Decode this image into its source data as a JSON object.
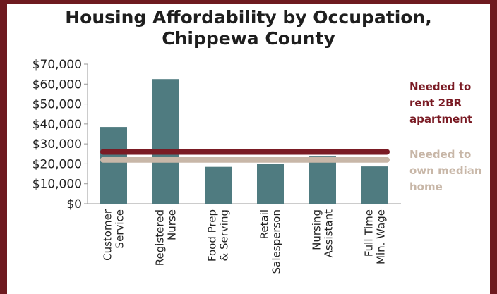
{
  "chart_data": {
    "type": "bar",
    "title_lines": [
      "Housing Affordability by Occupation,",
      "Chippewa County"
    ],
    "categories": [
      [
        "Customer",
        "Service"
      ],
      [
        "Registered",
        "Nurse"
      ],
      [
        "Food Prep",
        "& Serving"
      ],
      [
        "Retail",
        "Salesperson"
      ],
      [
        "Nursing",
        "Assistant"
      ],
      [
        "Full Time",
        "Min. Wage"
      ]
    ],
    "values": [
      38500,
      62500,
      18500,
      20000,
      24000,
      18700
    ],
    "ylim": [
      0,
      70000
    ],
    "yticks": [
      0,
      10000,
      20000,
      30000,
      40000,
      50000,
      60000,
      70000
    ],
    "ytick_labels": [
      "$0",
      "$10,000",
      "$20,000",
      "$30,000",
      "$40,000",
      "$50,000",
      "$60,000",
      "$70,000"
    ],
    "reference_lines": [
      {
        "label_lines": [
          "Needed to",
          "rent 2BR",
          "apartment"
        ],
        "value": 26000,
        "color": "#7a1b24"
      },
      {
        "label_lines": [
          "Needed to",
          "own median",
          "home"
        ],
        "value": 22000,
        "color": "#c8b7a8"
      }
    ],
    "bar_color": "#4f7b80",
    "grid": false
  }
}
